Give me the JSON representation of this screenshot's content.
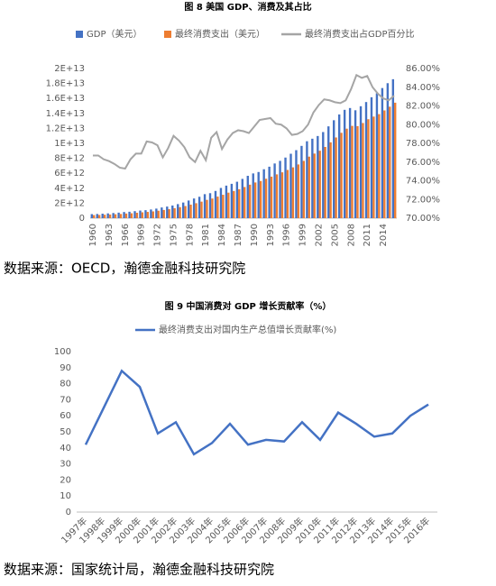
{
  "chart_data": [
    {
      "type": "bar",
      "title": "图 8 美国 GDP、消费及其占比",
      "categories": [
        "1960",
        null,
        null,
        "1963",
        null,
        null,
        "1966",
        null,
        null,
        "1969",
        null,
        null,
        "1972",
        null,
        null,
        "1975",
        null,
        null,
        "1978",
        null,
        null,
        "1981",
        null,
        null,
        "1984",
        null,
        null,
        "1987",
        null,
        null,
        "1990",
        null,
        null,
        "1993",
        null,
        null,
        "1996",
        null,
        null,
        "1999",
        null,
        null,
        "2002",
        null,
        null,
        "2005",
        null,
        null,
        "2008",
        null,
        null,
        "2011",
        null,
        null,
        "2014",
        null,
        null
      ],
      "series": [
        {
          "name": "GDP（美元）",
          "color": "#4472c4",
          "values": [
            540000000000.0,
            560000000000.0,
            600000000000.0,
            640000000000.0,
            690000000000.0,
            740000000000.0,
            820000000000.0,
            860000000000.0,
            940000000000.0,
            1020000000000.0,
            1070000000000.0,
            1160000000000.0,
            1280000000000.0,
            1430000000000.0,
            1550000000000.0,
            1690000000000.0,
            1880000000000.0,
            2090000000000.0,
            2360000000000.0,
            2630000000000.0,
            2860000000000.0,
            3210000000000.0,
            3340000000000.0,
            3640000000000.0,
            4040000000000.0,
            4350000000000.0,
            4590000000000.0,
            4870000000000.0,
            5250000000000.0,
            5660000000000.0,
            5980000000000.0,
            6170000000000.0,
            6540000000000.0,
            6880000000000.0,
            7310000000000.0,
            7660000000000.0,
            8100000000000.0,
            8610000000000.0,
            9090000000000.0,
            9660000000000.0,
            10280000000000.0,
            10620000000000.0,
            10980000000000.0,
            11510000000000.0,
            12270000000000.0,
            13090000000000.0,
            13860000000000.0,
            14480000000000.0,
            14720000000000.0,
            14420000000000.0,
            14960000000000.0,
            15520000000000.0,
            16160000000000.0,
            16690000000000.0,
            17390000000000.0,
            18040000000000.0,
            18570000000000.0
          ]
        },
        {
          "name": "最终消费支出（美元）",
          "color": "#ed7d31",
          "values": [
            414000000000.0,
            430000000000.0,
            458000000000.0,
            487000000000.0,
            523000000000.0,
            558000000000.0,
            617000000000.0,
            656000000000.0,
            723000000000.0,
            784000000000.0,
            837000000000.0,
            906000000000.0,
            996000000000.0,
            1094000000000.0,
            1201000000000.0,
            1332000000000.0,
            1472000000000.0,
            1622000000000.0,
            1805000000000.0,
            1999000000000.0,
            2208000000000.0,
            2446000000000.0,
            2625000000000.0,
            2883000000000.0,
            3127000000000.0,
            3410000000000.0,
            3631000000000.0,
            3867000000000.0,
            4163000000000.0,
            4477000000000.0,
            4772000000000.0,
            4967000000000.0,
            5271000000000.0,
            5552000000000.0,
            5855000000000.0,
            6128000000000.0,
            6448000000000.0,
            6793000000000.0,
            7181000000000.0,
            7660000000000.0,
            8224000000000.0,
            8634000000000.0,
            9015000000000.0,
            9519000000000.0,
            10135000000000.0,
            10786000000000.0,
            11407000000000.0,
            11960000000000.0,
            12335000000000.0,
            12300000000000.0,
            12716000000000.0,
            13223000000000.0,
            13574000000000.0,
            13903000000000.0,
            14399000000000.0,
            14901000000000.0,
            15432000000000.0
          ]
        },
        {
          "name": "最终消费支出占GDP百分比",
          "color": "#a5a5a5",
          "type": "line",
          "axis": "y2",
          "values": [
            76.7,
            76.7,
            76.3,
            76.1,
            75.8,
            75.4,
            75.3,
            76.3,
            76.9,
            76.9,
            78.2,
            78.1,
            77.8,
            76.5,
            77.5,
            78.8,
            78.3,
            77.6,
            76.5,
            76.0,
            77.2,
            76.2,
            78.6,
            79.2,
            77.4,
            78.4,
            79.1,
            79.4,
            79.3,
            79.1,
            79.8,
            80.5,
            80.6,
            80.7,
            80.1,
            80.0,
            79.6,
            78.9,
            79.0,
            79.3,
            80.0,
            81.3,
            82.1,
            82.7,
            82.6,
            82.4,
            82.3,
            82.6,
            83.8,
            85.3,
            85.0,
            85.2,
            84.0,
            83.3,
            82.8,
            82.6,
            83.1
          ]
        }
      ],
      "ylim": [
        0,
        20000000000000.0
      ],
      "yticks": [
        0,
        {
          "value": 2000000000000.0,
          "label": "2E+12"
        },
        {
          "value": 4000000000000.0,
          "label": "4E+12"
        },
        {
          "value": 6000000000000.0,
          "label": "6E+12"
        },
        {
          "value": 8000000000000.0,
          "label": "8E+12"
        },
        {
          "value": 10000000000000.0,
          "label": "1E+13"
        },
        {
          "value": 12000000000000.0,
          "label": "1.2E+13"
        },
        {
          "value": 14000000000000.0,
          "label": "1.4E+13"
        },
        {
          "value": 16000000000000.0,
          "label": "1.6E+13"
        },
        {
          "value": 18000000000000.0,
          "label": "1.8E+13"
        },
        {
          "value": 20000000000000.0,
          "label": "2E+13"
        }
      ],
      "y2lim": [
        70,
        86
      ],
      "y2ticks": [
        {
          "value": 70,
          "label": "70.00%"
        },
        {
          "value": 72,
          "label": "72.00%"
        },
        {
          "value": 74,
          "label": "74.00%"
        },
        {
          "value": 76,
          "label": "76.00%"
        },
        {
          "value": 78,
          "label": "78.00%"
        },
        {
          "value": 80,
          "label": "80.00%"
        },
        {
          "value": 82,
          "label": "82.00%"
        },
        {
          "value": 84,
          "label": "84.00%"
        },
        {
          "value": 86,
          "label": "86.00%"
        }
      ],
      "grid": false,
      "source": "数据来源：OECD，瀚德金融科技研究院"
    },
    {
      "type": "line",
      "title": "图 9 中国消费对 GDP 增长贡献率（%）",
      "categories": [
        "1997年",
        "1998年",
        "1999年",
        "2000年",
        "2001年",
        "2002年",
        "2003年",
        "2004年",
        "2005年",
        "2006年",
        "2007年",
        "2008年",
        "2009年",
        "2010年",
        "2011年",
        "2012年",
        "2013年",
        "2014年",
        "2015年",
        "2016年"
      ],
      "series": [
        {
          "name": "最终消费支出对国内生产总值增长贡献率(%)",
          "color": "#4472c4",
          "values": [
            42,
            65,
            88,
            78,
            49,
            56,
            36,
            43,
            55,
            42,
            45,
            44,
            56,
            45,
            62,
            55,
            47,
            49,
            60,
            67
          ]
        }
      ],
      "ylim": [
        0,
        100
      ],
      "yticks": [
        0,
        10,
        20,
        30,
        40,
        50,
        60,
        70,
        80,
        90,
        100
      ],
      "grid": false,
      "source": "数据来源：国家统计局，瀚德金融科技研究院"
    }
  ]
}
